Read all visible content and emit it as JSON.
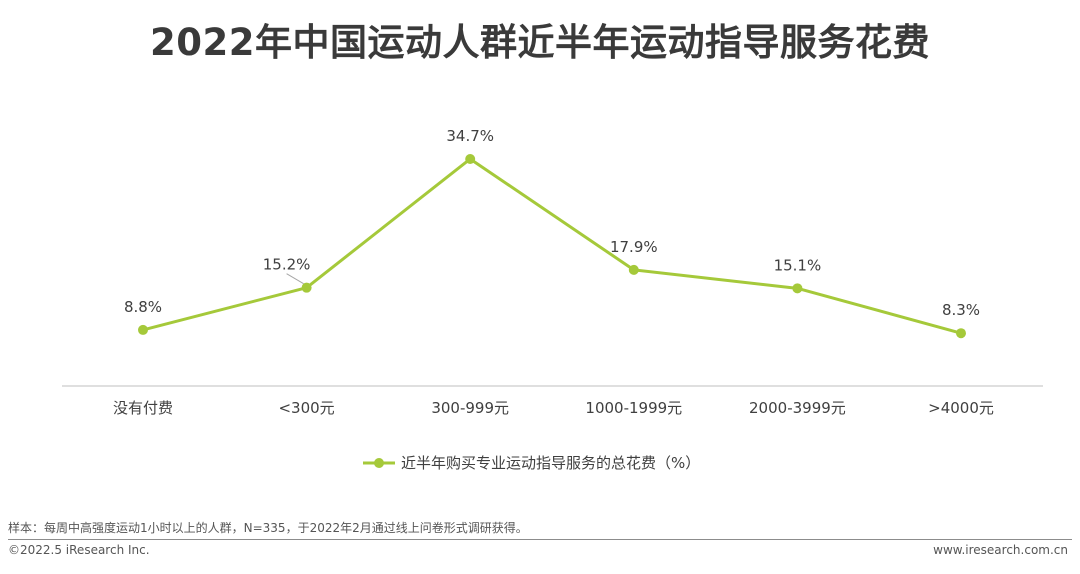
{
  "title": "2022年中国运动人群近半年运动指导服务花费",
  "chart_data": {
    "type": "line",
    "categories": [
      "没有付费",
      "<300元",
      "300-999元",
      "1000-1999元",
      "2000-3999元",
      ">4000元"
    ],
    "series": [
      {
        "name": "近半年购买专业运动指导服务的总花费（%）",
        "values": [
          8.8,
          15.2,
          34.7,
          17.9,
          15.1,
          8.3
        ],
        "labels": [
          "8.8%",
          "15.2%",
          "34.7%",
          "17.9%",
          "15.1%",
          "8.3%"
        ]
      }
    ],
    "legend": "bottom-center",
    "grid": false,
    "color": "#a5c93a"
  },
  "footer": {
    "note": "样本：每周中高强度运动1小时以上的人群，N=335，于2022年2月通过线上问卷形式调研获得。",
    "copyright": "©2022.5 iResearch Inc.",
    "website": "www.iresearch.com.cn"
  }
}
